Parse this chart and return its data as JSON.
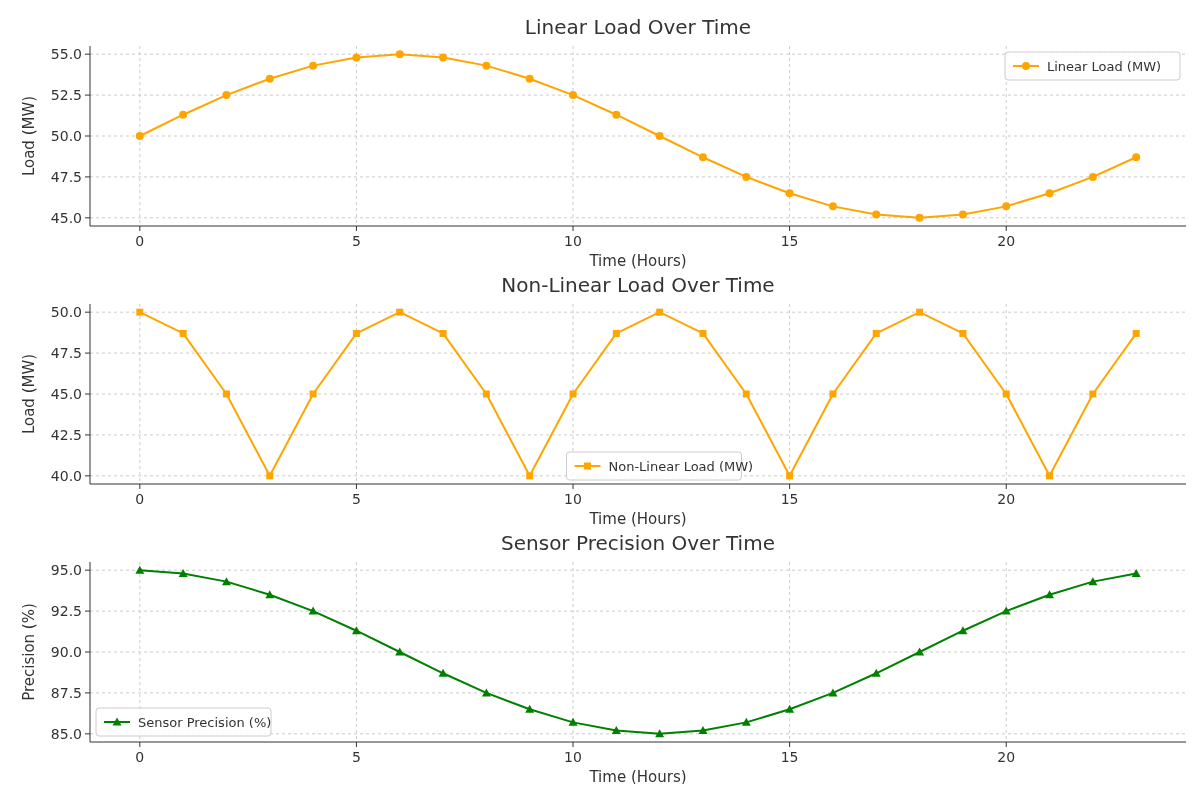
{
  "chart_data": [
    {
      "type": "line",
      "title": "Linear Load Over Time",
      "xlabel": "Time (Hours)",
      "ylabel": "Load (MW)",
      "x": [
        0,
        1,
        2,
        3,
        4,
        5,
        6,
        7,
        8,
        9,
        10,
        11,
        12,
        13,
        14,
        15,
        16,
        17,
        18,
        19,
        20,
        21,
        22,
        23
      ],
      "series": [
        {
          "name": "Linear Load (MW)",
          "color": "#ffa500",
          "values": [
            50,
            51.3,
            52.5,
            53.5,
            54.3,
            54.8,
            55,
            54.8,
            54.3,
            53.5,
            52.5,
            51.3,
            50,
            48.7,
            47.5,
            46.5,
            45.7,
            45.2,
            45,
            45.2,
            45.7,
            46.5,
            47.5,
            48.7
          ]
        }
      ],
      "xlim": [
        -1.15,
        24.15
      ],
      "xticks": [
        0,
        5,
        10,
        15,
        20
      ],
      "ylim": [
        44.5,
        55.5
      ],
      "yticks": [
        {
          "value": 45,
          "label": "45.0"
        },
        47.5,
        {
          "value": 50,
          "label": "50.0"
        },
        52.5,
        {
          "value": 55,
          "label": "55.0"
        }
      ],
      "grid": true,
      "legend": "top right",
      "marker": "circle",
      "line_style": "solid"
    },
    {
      "type": "line",
      "title": "Non-Linear Load Over Time",
      "xlabel": "Time (Hours)",
      "ylabel": "Load (MW)",
      "x": [
        0,
        1,
        2,
        3,
        4,
        5,
        6,
        7,
        8,
        9,
        10,
        11,
        12,
        13,
        14,
        15,
        16,
        17,
        18,
        19,
        20,
        21,
        22,
        23
      ],
      "series": [
        {
          "name": "Non-Linear Load (MW)",
          "color": "#ffa500",
          "values": [
            50,
            48.7,
            45,
            40,
            45,
            48.7,
            50,
            48.7,
            45,
            40,
            45,
            48.7,
            50,
            48.7,
            45,
            40,
            45,
            48.7,
            50,
            48.7,
            45,
            40,
            45,
            48.7
          ]
        }
      ],
      "xlim": [
        -1.15,
        24.15
      ],
      "xticks": [
        0,
        5,
        10,
        15,
        20
      ],
      "ylim": [
        39.5,
        50.5
      ],
      "yticks": [
        {
          "value": 40,
          "label": "40.0"
        },
        42.5,
        {
          "value": 45,
          "label": "45.0"
        },
        47.5,
        {
          "value": 50,
          "label": "50.0"
        }
      ],
      "grid": true,
      "legend": "bottom",
      "marker": "square",
      "line_style": "solid"
    },
    {
      "type": "line",
      "title": "Sensor Precision Over Time",
      "xlabel": "Time (Hours)",
      "ylabel": "Precision (%)",
      "x": [
        0,
        1,
        2,
        3,
        4,
        5,
        6,
        7,
        8,
        9,
        10,
        11,
        12,
        13,
        14,
        15,
        16,
        17,
        18,
        19,
        20,
        21,
        22,
        23
      ],
      "series": [
        {
          "name": "Sensor Precision (%)",
          "color": "#008000",
          "values": [
            95,
            94.8,
            94.3,
            93.5,
            92.5,
            91.3,
            90,
            88.7,
            87.5,
            86.5,
            85.7,
            85.2,
            85,
            85.2,
            85.7,
            86.5,
            87.5,
            88.7,
            90,
            91.3,
            92.5,
            93.5,
            94.3,
            94.8
          ]
        }
      ],
      "xlim": [
        -1.15,
        24.15
      ],
      "xticks": [
        0,
        5,
        10,
        15,
        20
      ],
      "ylim": [
        84.5,
        95.5
      ],
      "yticks": [
        {
          "value": 85,
          "label": "85.0"
        },
        87.5,
        {
          "value": 90,
          "label": "90.0"
        },
        92.5,
        {
          "value": 95,
          "label": "95.0"
        }
      ],
      "grid": true,
      "legend": "bottom left",
      "marker": "triangle",
      "line_style": "solid"
    }
  ]
}
